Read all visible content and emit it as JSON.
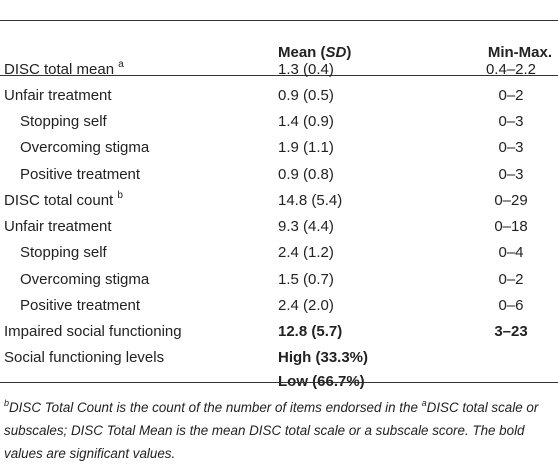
{
  "table": {
    "headers": {
      "col1": "",
      "col2_main": "Mean (",
      "col2_italic": "SD",
      "col2_close": ")",
      "col3": "Min-Max."
    },
    "rows": [
      {
        "label": "DISC total mean",
        "sup": "a",
        "mean": "1.3 (0.4)",
        "range": "0.4–2.2",
        "indent": false,
        "bold": false
      },
      {
        "label": "Unfair treatment",
        "sup": "",
        "mean": "0.9 (0.5)",
        "range": "0–2",
        "indent": false,
        "bold": false
      },
      {
        "label": "Stopping self",
        "sup": "",
        "mean": "1.4 (0.9)",
        "range": "0–3",
        "indent": true,
        "bold": false
      },
      {
        "label": "Overcoming stigma",
        "sup": "",
        "mean": "1.9 (1.1)",
        "range": "0–3",
        "indent": true,
        "bold": false
      },
      {
        "label": "Positive treatment",
        "sup": "",
        "mean": "0.9 (0.8)",
        "range": "0–3",
        "indent": true,
        "bold": false
      },
      {
        "label": "DISC total count",
        "sup": "b",
        "mean": "14.8 (5.4)",
        "range": "0–29",
        "indent": false,
        "bold": false
      },
      {
        "label": "Unfair treatment",
        "sup": "",
        "mean": "9.3 (4.4)",
        "range": "0–18",
        "indent": false,
        "bold": false
      },
      {
        "label": "Stopping self",
        "sup": "",
        "mean": "2.4 (1.2)",
        "range": "0–4",
        "indent": true,
        "bold": false
      },
      {
        "label": "Overcoming stigma",
        "sup": "",
        "mean": "1.5 (0.7)",
        "range": "0–2",
        "indent": true,
        "bold": false
      },
      {
        "label": "Positive treatment",
        "sup": "",
        "mean": "2.4 (2.0)",
        "range": "0–6",
        "indent": true,
        "bold": false
      },
      {
        "label": "Impaired social functioning",
        "sup": "",
        "mean": "12.8 (5.7)",
        "range": "3–23",
        "indent": false,
        "bold": true
      },
      {
        "label": "Social functioning levels",
        "sup": "",
        "mean": "High (33.3%)",
        "mean2": "Low (66.7%)",
        "range": "",
        "indent": false,
        "bold": true
      }
    ]
  },
  "footnote": {
    "sup_b": "b",
    "part1": "DISC Total Count is the count of the number of items endorsed in the ",
    "sup_a": "a",
    "part2": "DISC total scale or subscales; DISC Total Mean is the mean DISC total scale or a subscale score. The bold values are significant values."
  }
}
